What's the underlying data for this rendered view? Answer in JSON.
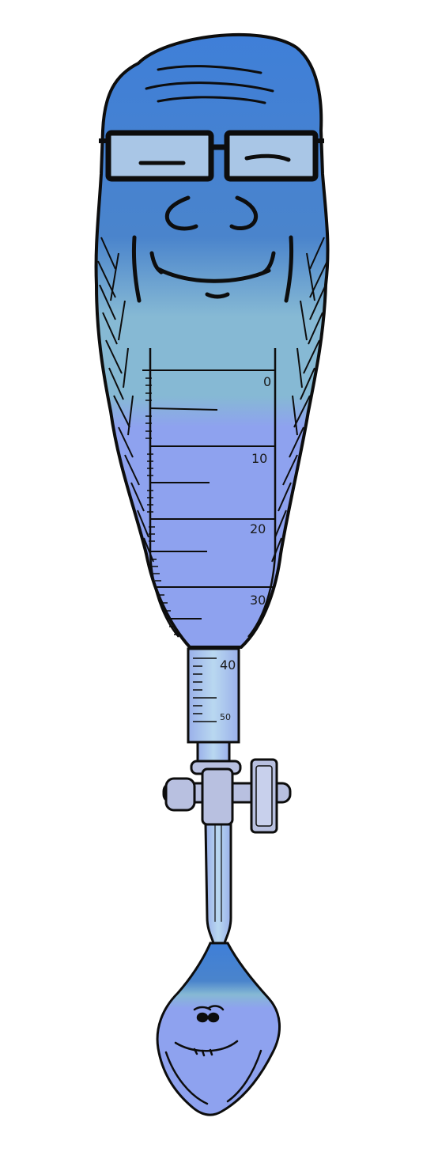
{
  "palette": {
    "head_top": "#3f7fd8",
    "head_mid": "#4a84cc",
    "band_teal": "#86b9d4",
    "body_lavender": "#8ea2ef",
    "glass_pale": "#a9c6e6",
    "stopcock_gray": "#b8c0e0",
    "outline": "#0d0d0d"
  },
  "burette_scale": {
    "labels": [
      "0",
      "10",
      "20",
      "30",
      "40",
      "50"
    ]
  },
  "icons": {
    "top_figure": "bald-glasses-face-icon",
    "drop_figure": "small-smiling-face-icon",
    "valve": "stopcock-icon"
  }
}
